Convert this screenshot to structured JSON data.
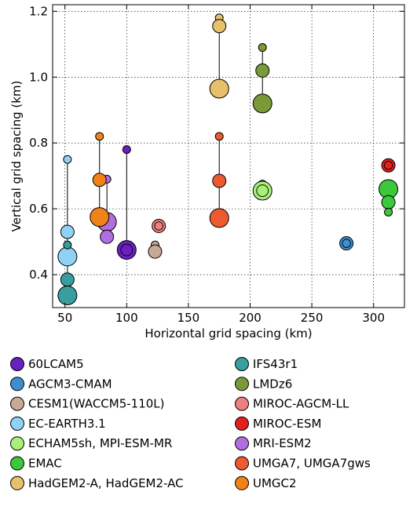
{
  "chart_data": {
    "type": "scatter",
    "xlabel": "Horizontal grid spacing (km)",
    "ylabel": "Vertical grid spacing (km)",
    "xlim": [
      40,
      325
    ],
    "ylim": [
      0.3,
      1.22
    ],
    "xticks": [
      50,
      100,
      150,
      200,
      250,
      300
    ],
    "yticks": [
      0.4,
      0.6,
      0.8,
      1.0,
      1.2
    ],
    "xtick_labels": [
      "50",
      "100",
      "150",
      "200",
      "250",
      "300"
    ],
    "ytick_labels": [
      "0.4",
      "0.6",
      "0.8",
      "1.0",
      "1.2"
    ],
    "grid": true,
    "legend_placement": "below",
    "series": [
      {
        "name": "60LCAM5",
        "color": "#6a1fbf",
        "points": [
          {
            "x": 100,
            "y": 0.78,
            "size": "small"
          },
          {
            "x": 100,
            "y": 0.475,
            "size": "large"
          }
        ],
        "ring_at": [
          1
        ],
        "connector": true
      },
      {
        "name": "AGCM3-CMAM",
        "color": "#3c8fd1",
        "points": [
          {
            "x": 278,
            "y": 0.495,
            "size": "medium"
          }
        ],
        "ring_at": [
          0
        ],
        "connector": false
      },
      {
        "name": "CESM1(WACCM5-110L)",
        "color": "#c9a896",
        "points": [
          {
            "x": 123,
            "y": 0.49,
            "size": "small"
          },
          {
            "x": 123,
            "y": 0.47,
            "size": "medium"
          }
        ],
        "ring_at": [],
        "connector": false
      },
      {
        "name": "EC-EARTH3.1",
        "color": "#8fd2f5",
        "points": [
          {
            "x": 52,
            "y": 0.75,
            "size": "small"
          },
          {
            "x": 52,
            "y": 0.53,
            "size": "medium"
          },
          {
            "x": 52,
            "y": 0.455,
            "size": "large"
          }
        ],
        "ring_at": [],
        "connector": true
      },
      {
        "name": "ECHAM5sh, MPI-ESM-MR",
        "color": "#a8f07a",
        "points": [
          {
            "x": 210,
            "y": 0.675,
            "size": "small"
          },
          {
            "x": 210,
            "y": 0.655,
            "size": "large"
          }
        ],
        "ring_at": [
          1
        ],
        "connector": false
      },
      {
        "name": "EMAC",
        "color": "#3cc83c",
        "points": [
          {
            "x": 312,
            "y": 0.66,
            "size": "large"
          },
          {
            "x": 312,
            "y": 0.62,
            "size": "medium"
          },
          {
            "x": 312,
            "y": 0.59,
            "size": "small"
          }
        ],
        "ring_at": [],
        "connector": false
      },
      {
        "name": "HadGEM2-A, HadGEM2-AC",
        "color": "#e8c06a",
        "points": [
          {
            "x": 175,
            "y": 1.18,
            "size": "small"
          },
          {
            "x": 175,
            "y": 1.155,
            "size": "medium"
          },
          {
            "x": 175,
            "y": 0.965,
            "size": "large"
          }
        ],
        "ring_at": [],
        "connector": true
      },
      {
        "name": "IFS43r1",
        "color": "#3b9e9e",
        "points": [
          {
            "x": 52,
            "y": 0.49,
            "size": "small"
          },
          {
            "x": 52,
            "y": 0.385,
            "size": "medium"
          },
          {
            "x": 52,
            "y": 0.337,
            "size": "large"
          }
        ],
        "ring_at": [],
        "connector": true
      },
      {
        "name": "LMDz6",
        "color": "#7a9a3a",
        "points": [
          {
            "x": 210,
            "y": 1.09,
            "size": "small"
          },
          {
            "x": 210,
            "y": 1.02,
            "size": "medium"
          },
          {
            "x": 210,
            "y": 0.92,
            "size": "large"
          }
        ],
        "ring_at": [],
        "connector": true
      },
      {
        "name": "MIROC-AGCM-LL",
        "color": "#f08080",
        "points": [
          {
            "x": 126,
            "y": 0.548,
            "size": "medium"
          }
        ],
        "ring_at": [
          0
        ],
        "connector": false
      },
      {
        "name": "MIROC-ESM",
        "color": "#e32020",
        "points": [
          {
            "x": 312,
            "y": 0.732,
            "size": "medium"
          }
        ],
        "ring_at": [
          0
        ],
        "connector": false
      },
      {
        "name": "MRI-ESM2",
        "color": "#b26de0",
        "points": [
          {
            "x": 84,
            "y": 0.69,
            "size": "small"
          },
          {
            "x": 84,
            "y": 0.56,
            "size": "large"
          },
          {
            "x": 84,
            "y": 0.515,
            "size": "medium"
          }
        ],
        "ring_at": [],
        "connector": true
      },
      {
        "name": "UMGA7, UMGA7gws",
        "color": "#ee5a30",
        "points": [
          {
            "x": 175,
            "y": 0.82,
            "size": "small"
          },
          {
            "x": 175,
            "y": 0.685,
            "size": "medium"
          },
          {
            "x": 175,
            "y": 0.572,
            "size": "large"
          }
        ],
        "ring_at": [],
        "connector": true
      },
      {
        "name": "UMGC2",
        "color": "#f08218",
        "points": [
          {
            "x": 78,
            "y": 0.82,
            "size": "small"
          },
          {
            "x": 78,
            "y": 0.688,
            "size": "medium"
          },
          {
            "x": 78,
            "y": 0.575,
            "size": "large"
          }
        ],
        "ring_at": [],
        "connector": true
      }
    ]
  }
}
